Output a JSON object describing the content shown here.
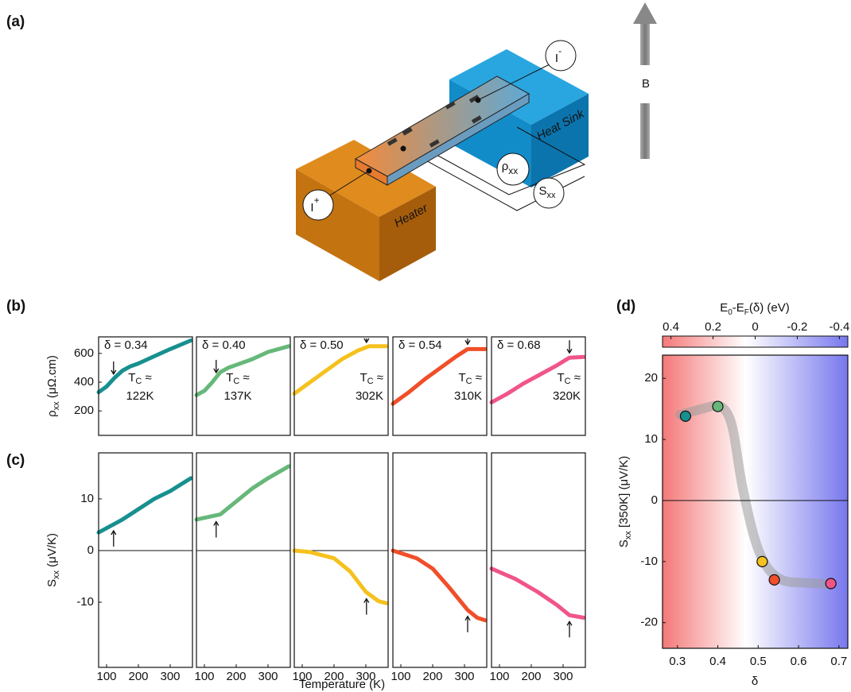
{
  "panel_labels": [
    "(a)",
    "(b)",
    "(c)",
    "(d)"
  ],
  "diagram": {
    "heater": "Heater",
    "heat_sink": "Heat Sink",
    "field": "B",
    "current_minus": {
      "symbol": "I",
      "superscript": "-"
    },
    "current_plus": {
      "symbol": "I",
      "superscript": "+"
    },
    "resistivity": {
      "symbol": "ρ",
      "subscript": "xx"
    },
    "seebeck": {
      "symbol": "S",
      "subscript": "xx"
    }
  },
  "tc_prefix_parts": [
    "T",
    "C",
    " ≈"
  ],
  "chart_data": [
    {
      "type": "line",
      "color": "#17908f",
      "xlim": [
        75,
        370
      ],
      "ylim": [
        30,
        715
      ],
      "yticks": [
        200,
        400,
        600
      ],
      "y_label": {
        "parts": [
          "ρ",
          "xx",
          " (μΩ.cm)"
        ]
      },
      "delta_label": "δ = 0.34",
      "tc": 122,
      "tc_label": "122K",
      "x": [
        75,
        100,
        125,
        150,
        175,
        200,
        250,
        300,
        365
      ],
      "values": [
        330,
        370,
        430,
        480,
        510,
        530,
        580,
        630,
        690
      ]
    },
    {
      "type": "line",
      "color": "#66b87a",
      "xlim": [
        75,
        370
      ],
      "ylim": [
        30,
        715
      ],
      "delta_label": "δ = 0.40",
      "tc": 137,
      "tc_label": "137K",
      "x": [
        75,
        100,
        125,
        150,
        175,
        200,
        250,
        300,
        365
      ],
      "values": [
        310,
        340,
        400,
        470,
        500,
        520,
        560,
        610,
        650
      ]
    },
    {
      "type": "line",
      "color": "#f5c11e",
      "xlim": [
        75,
        370
      ],
      "ylim": [
        30,
        715
      ],
      "delta_label": "δ = 0.50",
      "tc": 302,
      "tc_label": "302K",
      "x": [
        75,
        125,
        175,
        225,
        275,
        310,
        365
      ],
      "values": [
        320,
        400,
        480,
        560,
        620,
        650,
        650
      ]
    },
    {
      "type": "line",
      "color": "#f04f2a",
      "xlim": [
        75,
        370
      ],
      "ylim": [
        30,
        715
      ],
      "delta_label": "δ = 0.54",
      "tc": 310,
      "tc_label": "310K",
      "x": [
        75,
        125,
        175,
        225,
        275,
        310,
        365
      ],
      "values": [
        250,
        330,
        420,
        500,
        580,
        630,
        630
      ]
    },
    {
      "type": "line",
      "color": "#f0558a",
      "xlim": [
        75,
        370
      ],
      "ylim": [
        30,
        715
      ],
      "delta_label": "δ = 0.68",
      "tc": 320,
      "tc_label": "320K",
      "x": [
        75,
        125,
        175,
        225,
        275,
        320,
        365
      ],
      "values": [
        260,
        320,
        390,
        450,
        510,
        570,
        575
      ]
    },
    {
      "type": "line",
      "color": "#17908f",
      "xlim": [
        75,
        370
      ],
      "ylim": [
        -22.6,
        18.9
      ],
      "yticks": [
        -10,
        0,
        10
      ],
      "xticks": [
        100,
        200,
        300
      ],
      "y_label": {
        "parts": [
          "S",
          "xx",
          " (μV/K)"
        ]
      },
      "tc": 122,
      "x": [
        75,
        150,
        200,
        250,
        300,
        365
      ],
      "values": [
        3.5,
        6,
        8,
        10,
        11.5,
        14
      ]
    },
    {
      "type": "line",
      "color": "#66b87a",
      "xlim": [
        75,
        370
      ],
      "ylim": [
        -22.6,
        18.9
      ],
      "xticks": [
        100,
        200,
        300
      ],
      "tc": 137,
      "x": [
        75,
        150,
        200,
        250,
        300,
        365
      ],
      "values": [
        6,
        7,
        9.5,
        12,
        14,
        16.3
      ]
    },
    {
      "type": "line",
      "color": "#f5c11e",
      "xlim": [
        75,
        370
      ],
      "ylim": [
        -22.6,
        18.9
      ],
      "xticks": [
        100,
        200,
        300
      ],
      "tc": 302,
      "x_label": "Temperature (K)",
      "x": [
        75,
        125,
        200,
        250,
        300,
        340,
        365
      ],
      "values": [
        0,
        -0.3,
        -1.5,
        -4,
        -8,
        -9.8,
        -10.2
      ]
    },
    {
      "type": "line",
      "color": "#f04f2a",
      "xlim": [
        75,
        370
      ],
      "ylim": [
        -22.6,
        18.9
      ],
      "xticks": [
        100,
        200,
        300
      ],
      "tc": 310,
      "x": [
        75,
        150,
        200,
        250,
        310,
        340,
        365
      ],
      "values": [
        0,
        -1.5,
        -3.5,
        -7,
        -11.5,
        -13,
        -13.5
      ]
    },
    {
      "type": "line",
      "color": "#f0558a",
      "xlim": [
        75,
        370
      ],
      "ylim": [
        -22.6,
        18.9
      ],
      "xticks": [
        100,
        200,
        300
      ],
      "tc": 320,
      "x": [
        75,
        150,
        220,
        280,
        320,
        365
      ],
      "values": [
        -3.5,
        -5.5,
        -8,
        -10.5,
        -12.5,
        -13
      ]
    },
    {
      "type": "scatter",
      "xlim": [
        0.263,
        0.722
      ],
      "ylim": [
        -24.2,
        23.8
      ],
      "xticks": [
        0.3,
        0.4,
        0.5,
        0.6,
        0.7
      ],
      "yticks": [
        -20,
        -10,
        0,
        10,
        20
      ],
      "x_label": "δ",
      "y_label": {
        "parts": [
          "S",
          "xx",
          " [350K] (μV/K)"
        ]
      },
      "x": [
        0.32,
        0.4,
        0.51,
        0.54,
        0.68
      ],
      "values": [
        13.8,
        15.4,
        -10,
        -13,
        -13.6
      ],
      "colors": [
        "#17908f",
        "#66b87a",
        "#f5c11e",
        "#f04f2a",
        "#f0558a"
      ],
      "top_axis": {
        "label_parts": [
          "E",
          "0",
          "-E",
          "F",
          "(δ) (eV)"
        ],
        "lim": [
          0.44,
          -0.44
        ],
        "ticks": [
          0.4,
          0.2,
          0,
          -0.2,
          -0.4
        ]
      }
    }
  ]
}
